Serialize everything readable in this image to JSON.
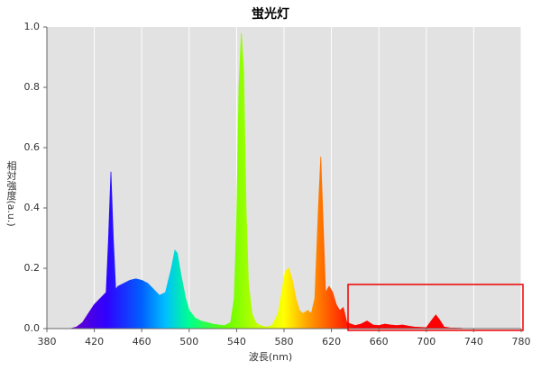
{
  "chart_data": {
    "type": "area",
    "title": "蛍光灯",
    "x_label": "波長(nm)",
    "y_label": "相対強度(a.u.)",
    "x": [
      400,
      405,
      410,
      415,
      420,
      425,
      430,
      432,
      434,
      436,
      438,
      440,
      445,
      450,
      455,
      460,
      465,
      470,
      475,
      480,
      485,
      488,
      490,
      493,
      497,
      500,
      505,
      510,
      515,
      520,
      525,
      530,
      535,
      538,
      540,
      542,
      544,
      546,
      548,
      550,
      553,
      556,
      560,
      565,
      570,
      575,
      578,
      581,
      584,
      587,
      590,
      593,
      596,
      600,
      603,
      606,
      609,
      611,
      613,
      615,
      618,
      621,
      624,
      627,
      630,
      633,
      640,
      645,
      650,
      655,
      660,
      665,
      670,
      675,
      680,
      685,
      690,
      700,
      705,
      708,
      711,
      715,
      720,
      730
    ],
    "values": [
      0,
      0.005,
      0.02,
      0.05,
      0.08,
      0.1,
      0.12,
      0.3,
      0.52,
      0.3,
      0.13,
      0.14,
      0.15,
      0.16,
      0.165,
      0.16,
      0.15,
      0.13,
      0.11,
      0.12,
      0.2,
      0.26,
      0.25,
      0.18,
      0.1,
      0.06,
      0.035,
      0.025,
      0.02,
      0.015,
      0.012,
      0.01,
      0.02,
      0.1,
      0.35,
      0.8,
      0.98,
      0.85,
      0.4,
      0.15,
      0.05,
      0.02,
      0.01,
      0.005,
      0.01,
      0.05,
      0.12,
      0.19,
      0.2,
      0.16,
      0.1,
      0.06,
      0.05,
      0.06,
      0.05,
      0.1,
      0.4,
      0.57,
      0.35,
      0.12,
      0.14,
      0.12,
      0.08,
      0.06,
      0.07,
      0.02,
      0.01,
      0.015,
      0.025,
      0.012,
      0.01,
      0.015,
      0.012,
      0.01,
      0.012,
      0.008,
      0.005,
      0.003,
      0.03,
      0.045,
      0.03,
      0.005,
      0.002,
      0.001
    ],
    "xlim": [
      380,
      780
    ],
    "xticks": [
      380,
      420,
      460,
      500,
      540,
      580,
      620,
      660,
      700,
      740,
      780
    ],
    "ylim": [
      0,
      1
    ],
    "yticks": [
      {
        "value": 0,
        "label": "0.0"
      },
      0.2,
      0.4,
      0.6,
      0.8,
      {
        "value": 1,
        "label": "1.0"
      }
    ],
    "grid": true
  }
}
